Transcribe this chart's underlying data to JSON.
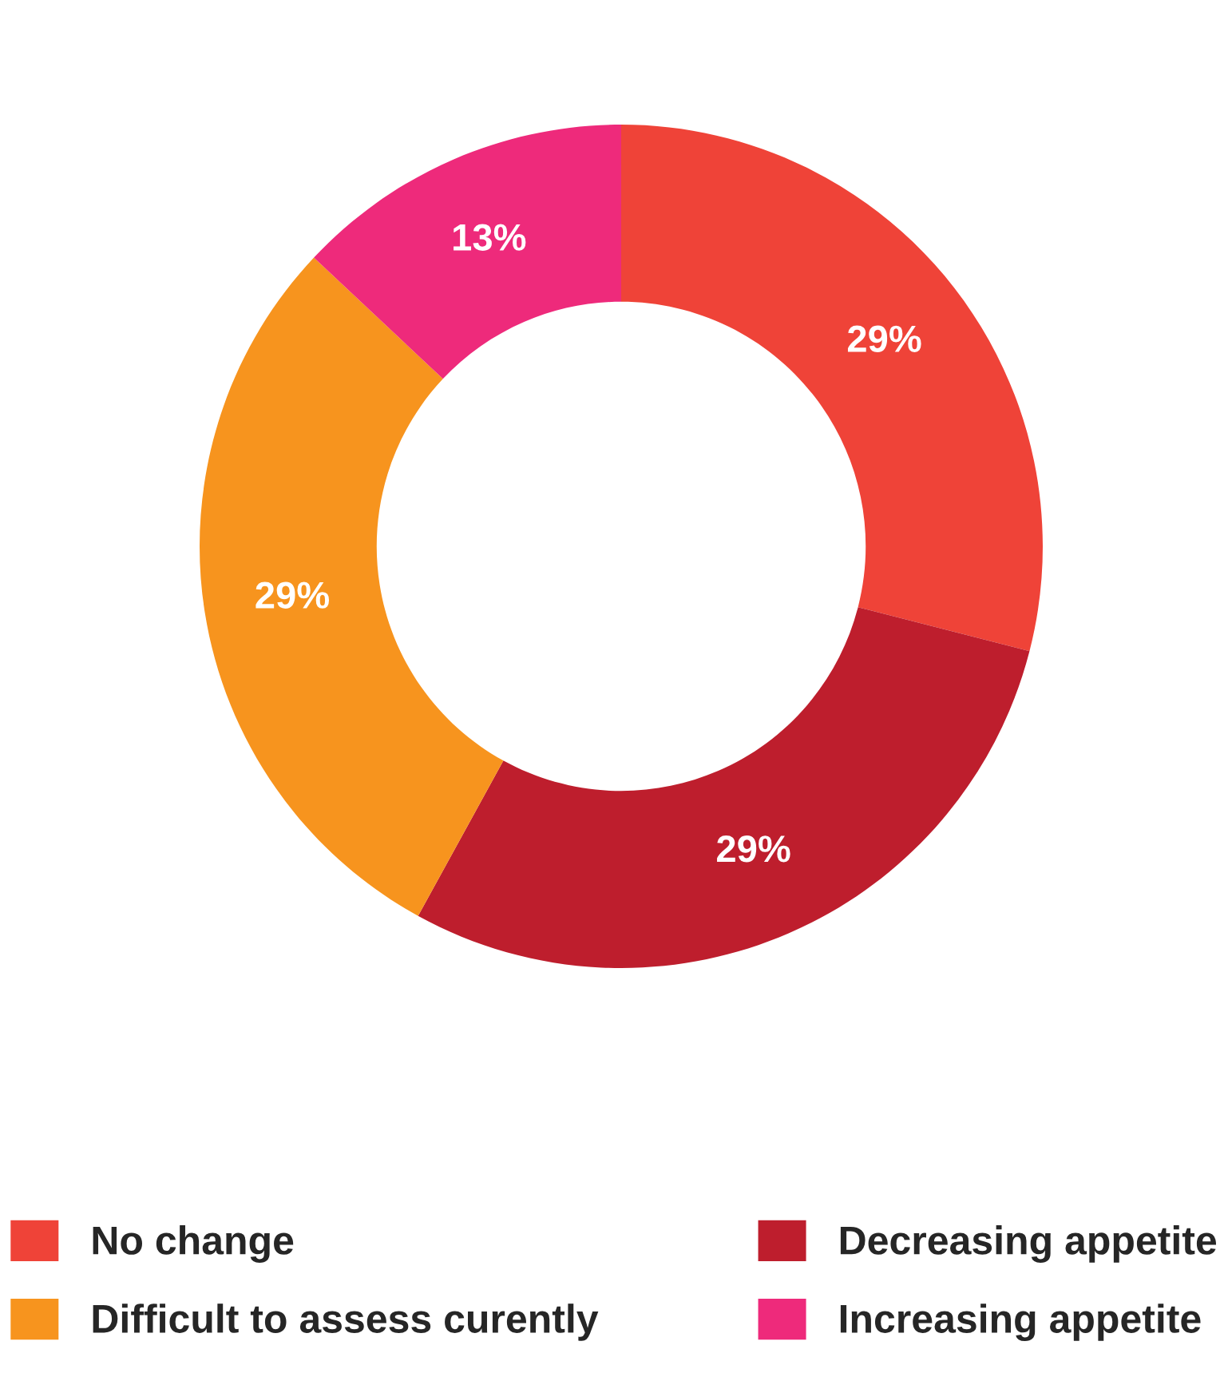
{
  "chart_data": {
    "type": "donut",
    "categories": [
      "No change",
      "Decreasing appetite",
      "Difficult to assess curently",
      "Increasing appetite"
    ],
    "values": [
      29,
      29,
      29,
      13
    ],
    "colors": [
      "#ef4338",
      "#be1e2d",
      "#f7941e",
      "#ee2a7b"
    ],
    "value_labels": [
      "29%",
      "29%",
      "29%",
      "13%"
    ],
    "legend": "bottom"
  }
}
